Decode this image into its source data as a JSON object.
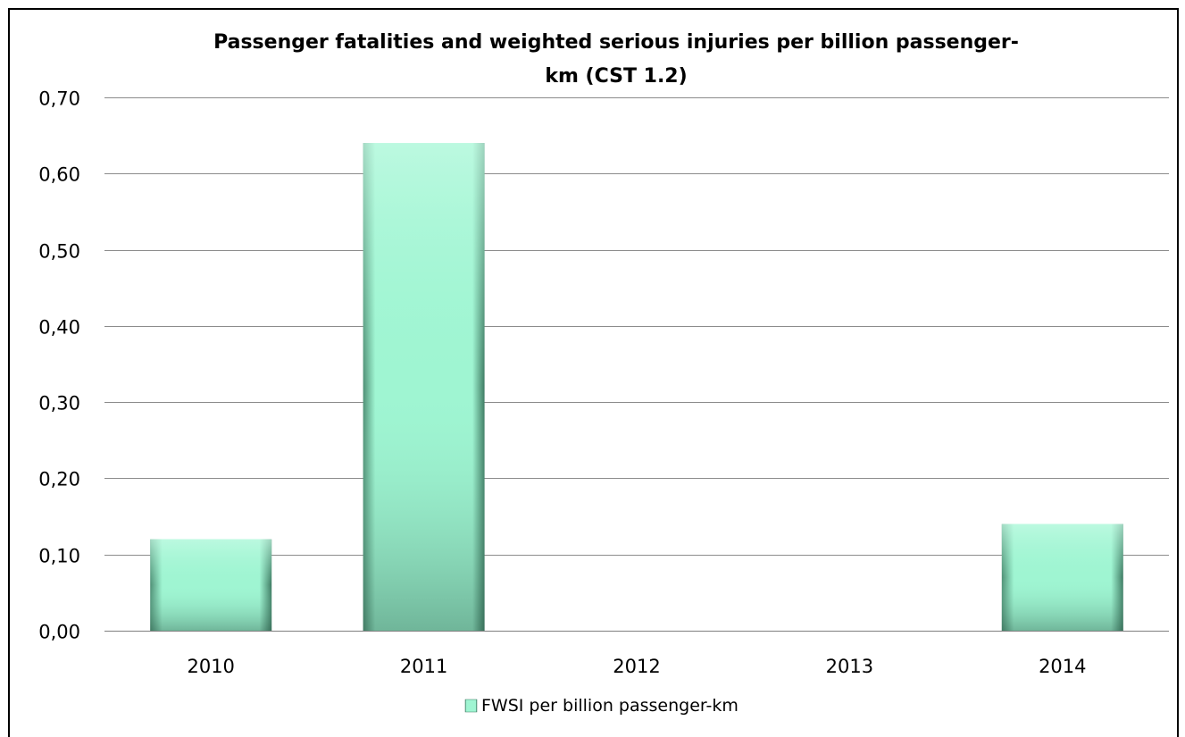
{
  "chart_data": {
    "type": "bar",
    "title_lines": [
      "Passenger fatalities and weighted serious injuries per billion passenger-",
      "km (CST 1.2)"
    ],
    "categories": [
      "2010",
      "2011",
      "2012",
      "2013",
      "2014"
    ],
    "series": [
      {
        "name": "FWSI per billion passenger-km",
        "values": [
          0.12,
          0.64,
          0.0,
          0.0,
          0.14
        ],
        "color": "#9ff5d2"
      }
    ],
    "ylim": [
      0,
      0.7
    ],
    "yticks": [
      "0,00",
      "0,10",
      "0,20",
      "0,30",
      "0,40",
      "0,50",
      "0,60",
      "0,70"
    ],
    "grid": true,
    "legend_position": "bottom"
  }
}
